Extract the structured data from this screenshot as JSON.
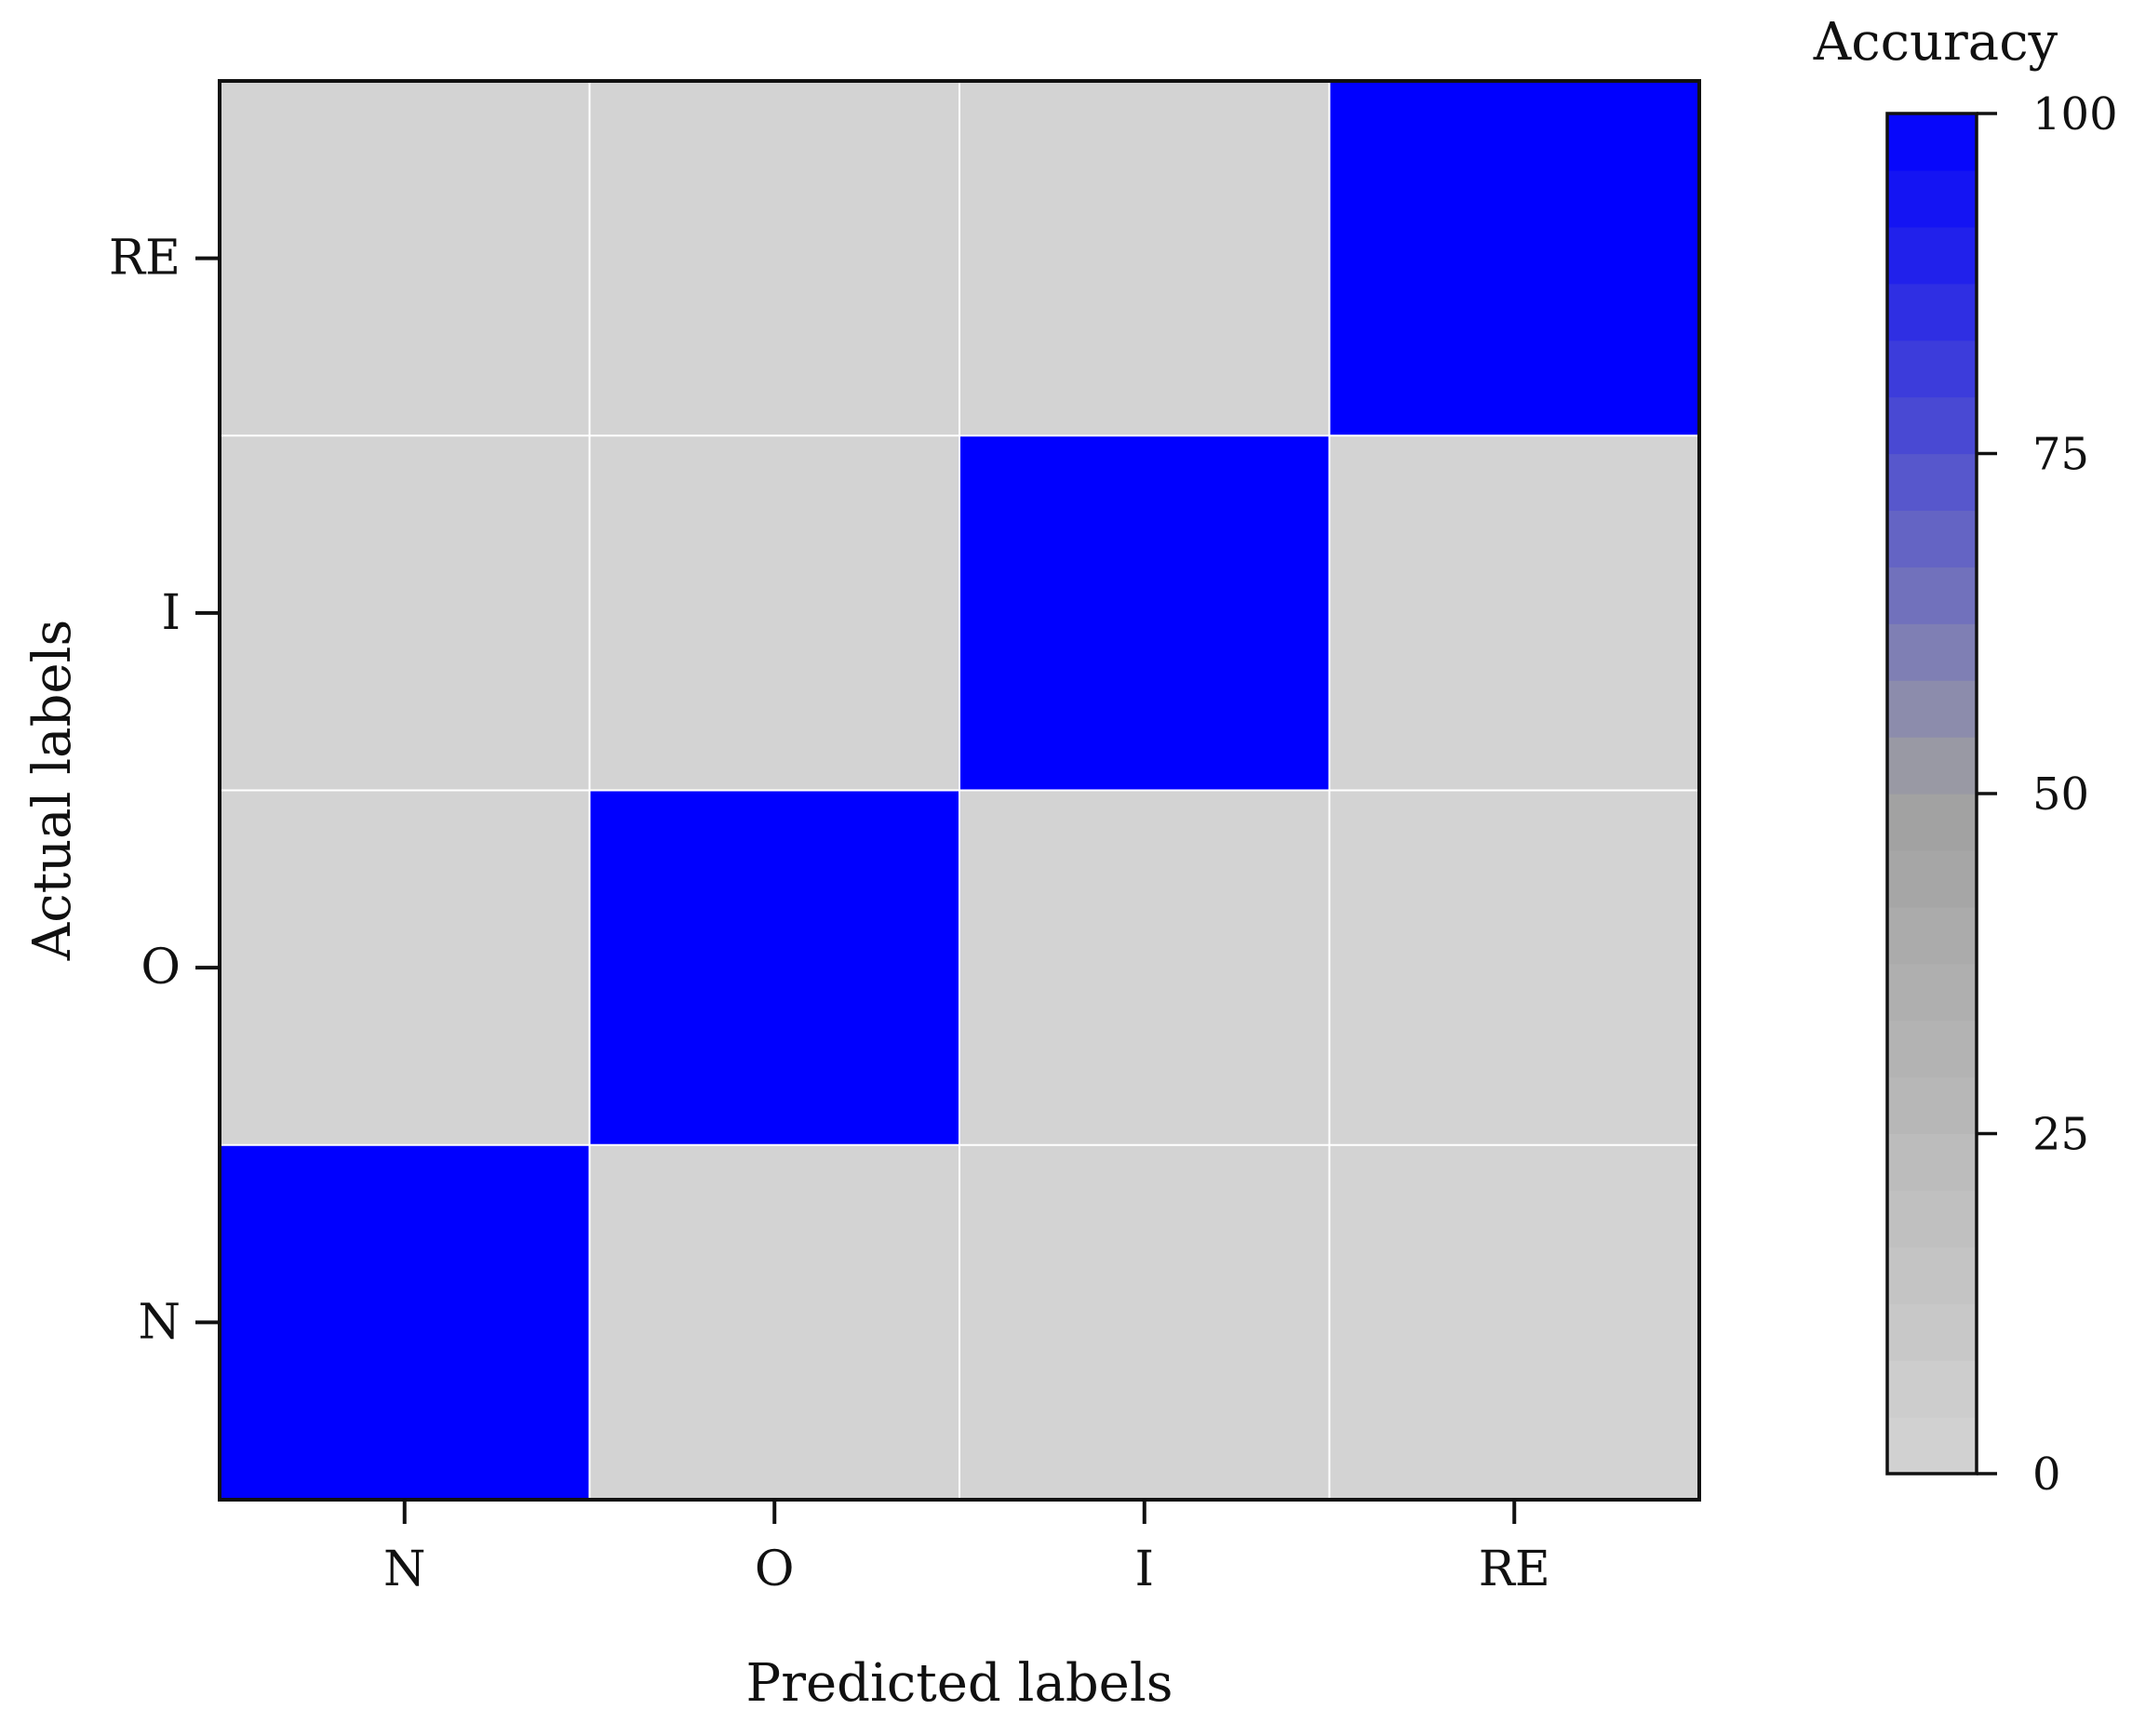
{
  "chart_data": {
    "type": "heatmap",
    "title": "",
    "xlabel": "Predicted labels",
    "ylabel": "Actual labels",
    "x_categories": [
      "N",
      "O",
      "I",
      "RE"
    ],
    "y_categories": [
      "N",
      "O",
      "I",
      "RE"
    ],
    "y_order": "bottom-to-top",
    "matrix": [
      [
        100,
        0,
        0,
        0
      ],
      [
        0,
        100,
        0,
        0
      ],
      [
        0,
        0,
        100,
        0
      ],
      [
        0,
        0,
        0,
        100
      ]
    ],
    "matrix_rows": "actual",
    "matrix_cols": "predicted",
    "colorbar": {
      "label": "Accuracy",
      "range": [
        0,
        100
      ],
      "ticks": [
        "0",
        "25",
        "50",
        "75",
        "100"
      ],
      "low_color": "#d3d3d3",
      "mid_color": "#a0a0a0",
      "high_color": "#0000ff"
    },
    "grid": true
  }
}
